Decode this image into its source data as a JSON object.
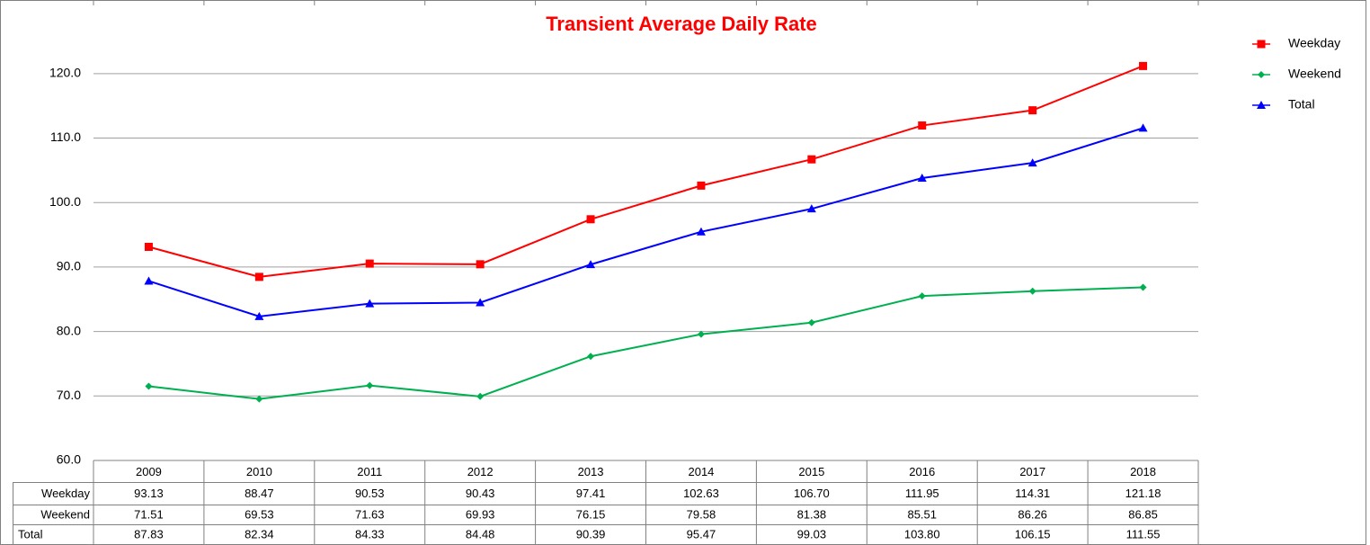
{
  "chart_data": {
    "type": "line",
    "title": "Transient Average Daily Rate",
    "categories": [
      "2009",
      "2010",
      "2011",
      "2012",
      "2013",
      "2014",
      "2015",
      "2016",
      "2017",
      "2018"
    ],
    "series": [
      {
        "name": "Weekday",
        "color": "#ff0000",
        "marker": "square",
        "values": [
          93.13,
          88.47,
          90.53,
          90.43,
          97.41,
          102.63,
          106.7,
          111.95,
          114.31,
          121.18
        ],
        "value_labels": [
          "93.13",
          "88.47",
          "90.53",
          "90.43",
          "97.41",
          "102.63",
          "106.70",
          "111.95",
          "114.31",
          "121.18"
        ]
      },
      {
        "name": "Weekend",
        "color": "#00b050",
        "marker": "diamond",
        "values": [
          71.51,
          69.53,
          71.63,
          69.93,
          76.15,
          79.58,
          81.38,
          85.51,
          86.26,
          86.85
        ],
        "value_labels": [
          "71.51",
          "69.53",
          "71.63",
          "69.93",
          "76.15",
          "79.58",
          "81.38",
          "85.51",
          "86.26",
          "86.85"
        ]
      },
      {
        "name": "Total",
        "color": "#0000ff",
        "marker": "triangle",
        "values": [
          87.83,
          82.34,
          84.33,
          84.48,
          90.39,
          95.47,
          99.03,
          103.8,
          106.15,
          111.55
        ],
        "value_labels": [
          "87.83",
          "82.34",
          "84.33",
          "84.48",
          "90.39",
          "95.47",
          "99.03",
          "103.80",
          "106.15",
          "111.55"
        ]
      }
    ],
    "ylim": [
      60,
      125
    ],
    "yticks": [
      {
        "value": 60,
        "label": "60.0"
      },
      {
        "value": 70,
        "label": "70.0"
      },
      {
        "value": 80,
        "label": "80.0"
      },
      {
        "value": 90,
        "label": "90.0"
      },
      {
        "value": 100,
        "label": "100.0"
      },
      {
        "value": 110,
        "label": "110.0"
      },
      {
        "value": 120,
        "label": "120.0"
      }
    ],
    "grid": true,
    "legend": "right"
  }
}
